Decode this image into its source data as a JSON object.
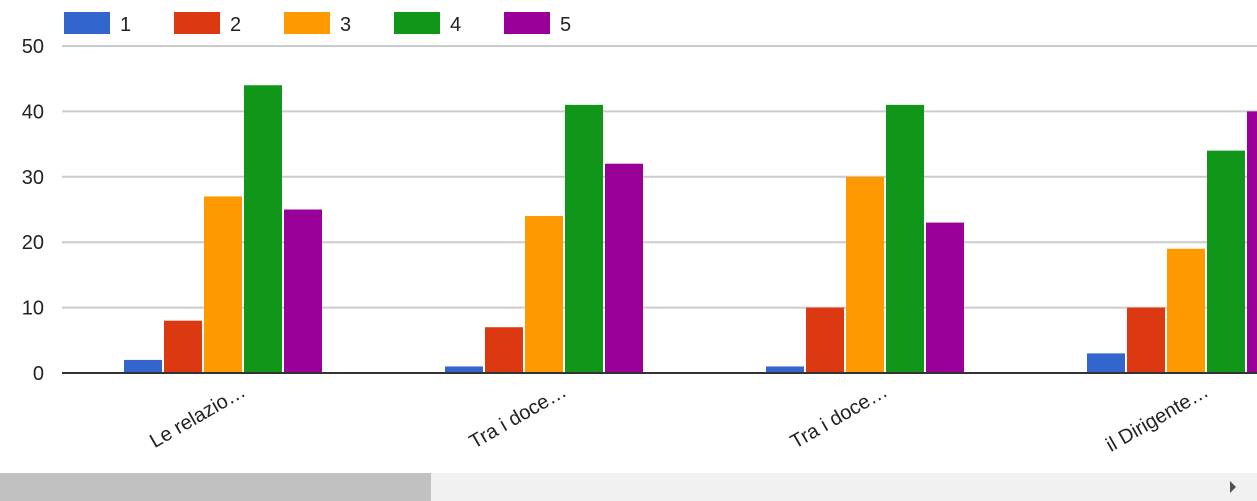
{
  "chart_data": {
    "type": "bar",
    "categories": [
      "Le relazio…",
      "Tra i doce…",
      "Tra i doce…",
      "il Dirigente…"
    ],
    "series": [
      {
        "name": "1",
        "color": "#3366cc",
        "values": [
          2,
          1,
          1,
          3
        ]
      },
      {
        "name": "2",
        "color": "#dc3912",
        "values": [
          8,
          7,
          10,
          10
        ]
      },
      {
        "name": "3",
        "color": "#ff9900",
        "values": [
          27,
          24,
          30,
          19
        ]
      },
      {
        "name": "4",
        "color": "#109618",
        "values": [
          44,
          41,
          41,
          34
        ]
      },
      {
        "name": "5",
        "color": "#990099",
        "values": [
          25,
          32,
          23,
          40
        ]
      }
    ],
    "ylim": [
      0,
      50
    ],
    "yticks": [
      "0",
      "10",
      "20",
      "30",
      "40",
      "50"
    ],
    "grid": true,
    "legend": "top-left"
  },
  "scrollbar": {
    "thumb_position": 0,
    "right_arrow_icon": "triangle-right-icon"
  }
}
